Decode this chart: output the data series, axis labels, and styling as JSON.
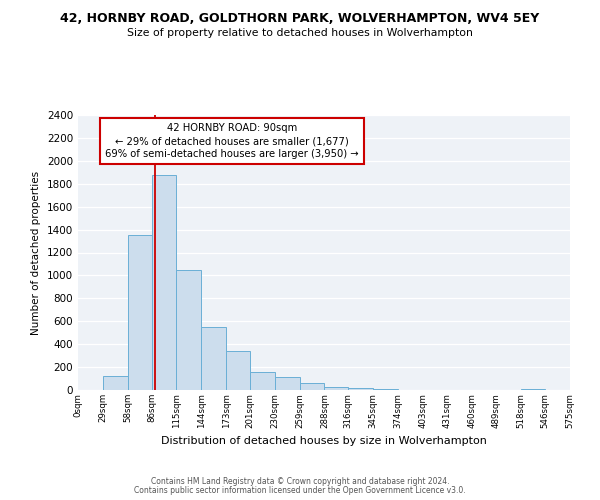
{
  "title": "42, HORNBY ROAD, GOLDTHORN PARK, WOLVERHAMPTON, WV4 5EY",
  "subtitle": "Size of property relative to detached houses in Wolverhampton",
  "xlabel": "Distribution of detached houses by size in Wolverhampton",
  "ylabel": "Number of detached properties",
  "bar_color": "#ccdded",
  "bar_edge_color": "#6aafd6",
  "background_color": "#eef2f7",
  "grid_color": "#ffffff",
  "annotation_line1": "42 HORNBY ROAD: 90sqm",
  "annotation_line2": "← 29% of detached houses are smaller (1,677)",
  "annotation_line3": "69% of semi-detached houses are larger (3,950) →",
  "annotation_box_color": "#ffffff",
  "annotation_edge_color": "#cc0000",
  "vline_color": "#cc0000",
  "vline_x": 90,
  "bin_edges": [
    0,
    29,
    58,
    86,
    115,
    144,
    173,
    201,
    230,
    259,
    288,
    316,
    345,
    374,
    403,
    431,
    460,
    489,
    518,
    546,
    575
  ],
  "bar_heights": [
    0,
    120,
    1350,
    1880,
    1050,
    550,
    340,
    160,
    110,
    60,
    30,
    20,
    5,
    2,
    0,
    1,
    0,
    0,
    5,
    0
  ],
  "ylim": [
    0,
    2400
  ],
  "yticks": [
    0,
    200,
    400,
    600,
    800,
    1000,
    1200,
    1400,
    1600,
    1800,
    2000,
    2200,
    2400
  ],
  "xtick_labels": [
    "0sqm",
    "29sqm",
    "58sqm",
    "86sqm",
    "115sqm",
    "144sqm",
    "173sqm",
    "201sqm",
    "230sqm",
    "259sqm",
    "288sqm",
    "316sqm",
    "345sqm",
    "374sqm",
    "403sqm",
    "431sqm",
    "460sqm",
    "489sqm",
    "518sqm",
    "546sqm",
    "575sqm"
  ],
  "footer1": "Contains HM Land Registry data © Crown copyright and database right 2024.",
  "footer2": "Contains public sector information licensed under the Open Government Licence v3.0."
}
